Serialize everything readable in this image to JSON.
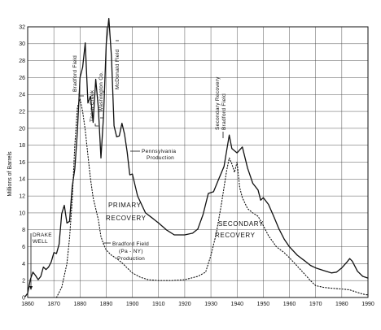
{
  "chart_data": {
    "type": "line",
    "title": "",
    "xlabel": "",
    "ylabel": "Millions of Barrels",
    "xlim": [
      1860,
      1990
    ],
    "ylim": [
      0,
      32
    ],
    "grid": true,
    "x_ticks": [
      "1860",
      "1870",
      "1880",
      "1890",
      "1900",
      "1910",
      "1920",
      "1930",
      "1940",
      "1950",
      "1960",
      "1970",
      "1980",
      "1990"
    ],
    "y_ticks": [
      "0",
      "2",
      "4",
      "6",
      "8",
      "10",
      "12",
      "14",
      "16",
      "18",
      "20",
      "22",
      "24",
      "26",
      "28",
      "30",
      "32"
    ],
    "series": [
      {
        "name": "Pennsylvania Production",
        "style": "solid",
        "points": [
          [
            1859,
            0.1
          ],
          [
            1860,
            0.5
          ],
          [
            1861,
            2.1
          ],
          [
            1862,
            3.0
          ],
          [
            1863,
            2.6
          ],
          [
            1864,
            2.1
          ],
          [
            1865,
            2.5
          ],
          [
            1866,
            3.6
          ],
          [
            1867,
            3.3
          ],
          [
            1868,
            3.6
          ],
          [
            1869,
            4.2
          ],
          [
            1870,
            5.3
          ],
          [
            1871,
            5.2
          ],
          [
            1872,
            6.3
          ],
          [
            1873,
            9.9
          ],
          [
            1874,
            10.9
          ],
          [
            1875,
            8.8
          ],
          [
            1876,
            9.0
          ],
          [
            1877,
            13.1
          ],
          [
            1878,
            15.2
          ],
          [
            1879,
            19.7
          ],
          [
            1880,
            26.0
          ],
          [
            1881,
            27.2
          ],
          [
            1882,
            30.1
          ],
          [
            1883,
            23.0
          ],
          [
            1884,
            23.8
          ],
          [
            1885,
            20.7
          ],
          [
            1886,
            25.8
          ],
          [
            1887,
            22.4
          ],
          [
            1888,
            16.5
          ],
          [
            1889,
            21.5
          ],
          [
            1890,
            30.0
          ],
          [
            1891,
            33.0
          ],
          [
            1892,
            28.5
          ],
          [
            1893,
            20.3
          ],
          [
            1894,
            19.0
          ],
          [
            1895,
            19.1
          ],
          [
            1896,
            20.6
          ],
          [
            1897,
            19.3
          ],
          [
            1898,
            17.2
          ],
          [
            1899,
            14.5
          ],
          [
            1900,
            14.6
          ],
          [
            1902,
            12.0
          ],
          [
            1905,
            10.0
          ],
          [
            1908,
            9.3
          ],
          [
            1910,
            8.8
          ],
          [
            1913,
            8.0
          ],
          [
            1916,
            7.4
          ],
          [
            1920,
            7.4
          ],
          [
            1923,
            7.6
          ],
          [
            1925,
            8.1
          ],
          [
            1927,
            9.8
          ],
          [
            1929,
            12.3
          ],
          [
            1931,
            12.5
          ],
          [
            1933,
            14.0
          ],
          [
            1935,
            15.5
          ],
          [
            1937,
            19.2
          ],
          [
            1938,
            17.6
          ],
          [
            1940,
            17.1
          ],
          [
            1942,
            17.8
          ],
          [
            1944,
            15.3
          ],
          [
            1946,
            13.5
          ],
          [
            1948,
            12.7
          ],
          [
            1949,
            11.5
          ],
          [
            1950,
            11.8
          ],
          [
            1952,
            11.0
          ],
          [
            1954,
            9.6
          ],
          [
            1956,
            8.1
          ],
          [
            1958,
            6.9
          ],
          [
            1960,
            6.0
          ],
          [
            1963,
            5.0
          ],
          [
            1966,
            4.3
          ],
          [
            1968,
            3.8
          ],
          [
            1970,
            3.5
          ],
          [
            1973,
            3.2
          ],
          [
            1976,
            2.9
          ],
          [
            1978,
            3.0
          ],
          [
            1980,
            3.5
          ],
          [
            1982,
            4.2
          ],
          [
            1983,
            4.6
          ],
          [
            1984,
            4.3
          ],
          [
            1986,
            3.1
          ],
          [
            1988,
            2.5
          ],
          [
            1990,
            2.3
          ]
        ]
      },
      {
        "name": "Bradford Field (Pa-NY) Production",
        "style": "dotted",
        "points": [
          [
            1871,
            0
          ],
          [
            1873,
            1.2
          ],
          [
            1875,
            4.0
          ],
          [
            1876,
            7.0
          ],
          [
            1877,
            11.5
          ],
          [
            1878,
            18.0
          ],
          [
            1879,
            22.5
          ],
          [
            1880,
            23.5
          ],
          [
            1881,
            22.0
          ],
          [
            1882,
            19.8
          ],
          [
            1883,
            16.8
          ],
          [
            1884,
            14.0
          ],
          [
            1885,
            11.8
          ],
          [
            1886,
            10.5
          ],
          [
            1887,
            9.2
          ],
          [
            1888,
            7.2
          ],
          [
            1889,
            6.3
          ],
          [
            1890,
            5.6
          ],
          [
            1892,
            5.0
          ],
          [
            1894,
            4.6
          ],
          [
            1896,
            4.1
          ],
          [
            1898,
            3.5
          ],
          [
            1900,
            2.9
          ],
          [
            1903,
            2.4
          ],
          [
            1906,
            2.1
          ],
          [
            1910,
            2.0
          ],
          [
            1915,
            2.0
          ],
          [
            1920,
            2.1
          ],
          [
            1925,
            2.5
          ],
          [
            1928,
            3.0
          ],
          [
            1930,
            5.0
          ],
          [
            1932,
            7.5
          ],
          [
            1934,
            11.0
          ],
          [
            1936,
            15.0
          ],
          [
            1937,
            16.5
          ],
          [
            1938,
            15.8
          ],
          [
            1939,
            14.8
          ],
          [
            1940,
            16.0
          ],
          [
            1941,
            13.0
          ],
          [
            1942,
            11.8
          ],
          [
            1944,
            10.5
          ],
          [
            1946,
            10.0
          ],
          [
            1948,
            9.6
          ],
          [
            1950,
            8.5
          ],
          [
            1952,
            7.3
          ],
          [
            1955,
            6.0
          ],
          [
            1958,
            5.3
          ],
          [
            1960,
            4.7
          ],
          [
            1963,
            3.7
          ],
          [
            1966,
            2.7
          ],
          [
            1968,
            2.0
          ],
          [
            1970,
            1.4
          ],
          [
            1973,
            1.2
          ],
          [
            1976,
            1.1
          ],
          [
            1980,
            1.0
          ],
          [
            1983,
            0.9
          ],
          [
            1986,
            0.6
          ],
          [
            1988,
            0.4
          ],
          [
            1990,
            0.3
          ]
        ]
      }
    ],
    "annotations": [
      {
        "text": "DRAKE WELL",
        "x": 1859,
        "y": 6.5
      },
      {
        "text": "Bradford Field",
        "x": 1880,
        "y": 24
      },
      {
        "text": "Thorn Creek",
        "x": 1884,
        "y": 21
      },
      {
        "text": "Washington Co.",
        "x": 1887,
        "y": 23
      },
      {
        "text": "McDonald Field",
        "x": 1891,
        "y": 30
      },
      {
        "text": "Pennsylvania Production",
        "x": 1899,
        "y": 18
      },
      {
        "text": "PRIMARY RECOVERY",
        "x": 1887,
        "y": 11
      },
      {
        "text": "Bradford Field (Pa-NY) Production",
        "x": 1889,
        "y": 5
      },
      {
        "text": "Secondary Recovery Bradford Field",
        "x": 1937,
        "y": 19
      },
      {
        "text": "SECONDARY RECOVERY",
        "x": 1943,
        "y": 9
      }
    ]
  },
  "labels": {
    "drake": [
      "DRAKE",
      "WELL"
    ],
    "bradford_top": "Bradford Field",
    "thorn_creek": "Thorn Creek",
    "washington": "Washington Co.",
    "mcdonald": "McDonald Field",
    "penn": [
      "Pennsylvania",
      "Production"
    ],
    "primary": [
      "PRIMARY",
      "RECOVERY"
    ],
    "bradford_bottom": [
      "Bradford Field",
      "(Pa - NY)",
      "Production"
    ],
    "secondary_top": [
      "Secondary Recovery",
      "Bradford Field"
    ],
    "secondary": [
      "SECONDARY",
      "RECOVERY"
    ]
  }
}
